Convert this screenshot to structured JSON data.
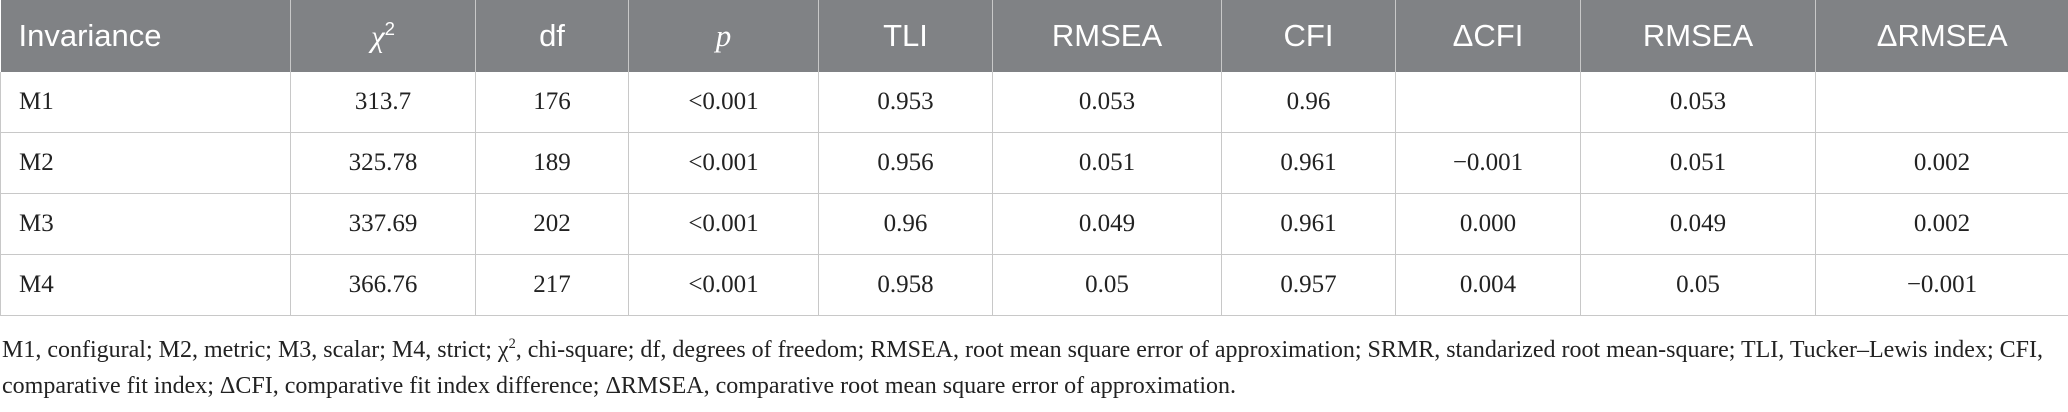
{
  "table": {
    "header": [
      {
        "text": "Invariance"
      },
      {
        "text": "χ",
        "sup": "2",
        "italic": true
      },
      {
        "text": "df"
      },
      {
        "text": "p",
        "italic": true
      },
      {
        "text": "TLI"
      },
      {
        "text": "RMSEA"
      },
      {
        "text": "CFI"
      },
      {
        "text": "ΔCFI"
      },
      {
        "text": "RMSEA"
      },
      {
        "text": "ΔRMSEA"
      }
    ],
    "rows": [
      [
        "M1",
        "313.7",
        "176",
        "<0.001",
        "0.953",
        "0.053",
        "0.96",
        null,
        "0.053",
        null
      ],
      [
        "M2",
        "325.78",
        "189",
        "<0.001",
        "0.956",
        "0.051",
        "0.961",
        "−0.001",
        "0.051",
        "0.002"
      ],
      [
        "M3",
        "337.69",
        "202",
        "<0.001",
        "0.96",
        "0.049",
        "0.961",
        "0.000",
        "0.049",
        "0.002"
      ],
      [
        "M4",
        "366.76",
        "217",
        "<0.001",
        "0.958",
        "0.05",
        "0.957",
        "0.004",
        "0.05",
        "−0.001"
      ]
    ]
  },
  "footnote": {
    "parts": [
      "M1, configural; M2, metric; M3, scalar; M4, strict; χ",
      "2",
      ", chi-square; df, degrees of freedom; RMSEA, root mean square error of approximation; SRMR, standarized root mean-square; TLI, Tucker–Lewis index; CFI, comparative fit index; ΔCFI, comparative fit index difference; ΔRMSEA, comparative root mean square error of approximation."
    ]
  }
}
